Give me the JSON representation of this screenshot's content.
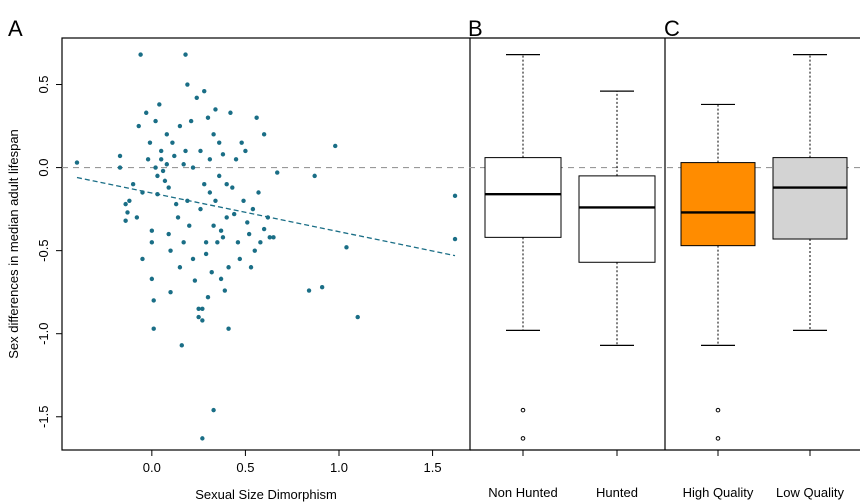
{
  "chart_data": [
    {
      "type": "scatter",
      "panel_label": "A",
      "xlabel": "Sexual Size Dimorphism",
      "ylabel": "Sex differences in median adult lifespan",
      "xlim": [
        -0.48,
        1.7
      ],
      "ylim": [
        -1.7,
        0.78
      ],
      "xticks": [
        0.0,
        0.5,
        1.0,
        1.5
      ],
      "xtick_labels": [
        "0.0",
        "0.5",
        "1.0",
        "1.5"
      ],
      "yticks": [
        0.5,
        0.0,
        -0.5,
        -1.0,
        -1.5
      ],
      "ytick_labels": [
        "0.5",
        "0.0",
        "-0.5",
        "-1.0",
        "-1.5"
      ],
      "point_color": "#1a6e86",
      "reference_line": {
        "y": 0.0,
        "color": "#999999",
        "style": "dashed"
      },
      "trend_line": {
        "x": [
          -0.4,
          1.62
        ],
        "y": [
          -0.06,
          -0.53
        ],
        "color": "#1a6e86",
        "style": "dashed"
      },
      "points": [
        {
          "x": -0.4,
          "y": 0.03
        },
        {
          "x": -0.17,
          "y": 0.07
        },
        {
          "x": -0.17,
          "y": 0.0
        },
        {
          "x": -0.14,
          "y": -0.22
        },
        {
          "x": -0.13,
          "y": -0.27
        },
        {
          "x": -0.14,
          "y": -0.32
        },
        {
          "x": -0.12,
          "y": -0.2
        },
        {
          "x": -0.1,
          "y": -0.1
        },
        {
          "x": -0.08,
          "y": -0.3
        },
        {
          "x": -0.07,
          "y": 0.25
        },
        {
          "x": -0.06,
          "y": 0.68
        },
        {
          "x": -0.05,
          "y": -0.15
        },
        {
          "x": -0.05,
          "y": -0.55
        },
        {
          "x": -0.03,
          "y": 0.33
        },
        {
          "x": -0.02,
          "y": 0.05
        },
        {
          "x": -0.01,
          "y": 0.15
        },
        {
          "x": 0.0,
          "y": -0.38
        },
        {
          "x": 0.0,
          "y": -0.45
        },
        {
          "x": 0.0,
          "y": -0.67
        },
        {
          "x": 0.01,
          "y": -0.8
        },
        {
          "x": 0.01,
          "y": -0.97
        },
        {
          "x": 0.02,
          "y": 0.28
        },
        {
          "x": 0.02,
          "y": 0.0
        },
        {
          "x": 0.03,
          "y": -0.05
        },
        {
          "x": 0.03,
          "y": -0.16
        },
        {
          "x": 0.04,
          "y": 0.38
        },
        {
          "x": 0.05,
          "y": 0.1
        },
        {
          "x": 0.05,
          "y": 0.05
        },
        {
          "x": 0.06,
          "y": -0.02
        },
        {
          "x": 0.07,
          "y": -0.08
        },
        {
          "x": 0.08,
          "y": 0.2
        },
        {
          "x": 0.08,
          "y": 0.02
        },
        {
          "x": 0.09,
          "y": -0.12
        },
        {
          "x": 0.09,
          "y": -0.4
        },
        {
          "x": 0.1,
          "y": -0.5
        },
        {
          "x": 0.1,
          "y": -0.75
        },
        {
          "x": 0.11,
          "y": 0.15
        },
        {
          "x": 0.12,
          "y": 0.07
        },
        {
          "x": 0.13,
          "y": -0.22
        },
        {
          "x": 0.14,
          "y": -0.3
        },
        {
          "x": 0.15,
          "y": 0.25
        },
        {
          "x": 0.15,
          "y": -0.6
        },
        {
          "x": 0.16,
          "y": -1.07
        },
        {
          "x": 0.17,
          "y": 0.02
        },
        {
          "x": 0.17,
          "y": -0.45
        },
        {
          "x": 0.18,
          "y": 0.68
        },
        {
          "x": 0.18,
          "y": 0.1
        },
        {
          "x": 0.19,
          "y": 0.5
        },
        {
          "x": 0.19,
          "y": -0.2
        },
        {
          "x": 0.2,
          "y": -0.35
        },
        {
          "x": 0.21,
          "y": 0.28
        },
        {
          "x": 0.22,
          "y": 0.0
        },
        {
          "x": 0.22,
          "y": -0.55
        },
        {
          "x": 0.23,
          "y": -0.68
        },
        {
          "x": 0.24,
          "y": 0.42
        },
        {
          "x": 0.25,
          "y": -0.85
        },
        {
          "x": 0.25,
          "y": -0.9
        },
        {
          "x": 0.26,
          "y": 0.1
        },
        {
          "x": 0.26,
          "y": -0.25
        },
        {
          "x": 0.27,
          "y": -0.85
        },
        {
          "x": 0.27,
          "y": -0.92
        },
        {
          "x": 0.28,
          "y": 0.46
        },
        {
          "x": 0.28,
          "y": -0.1
        },
        {
          "x": 0.29,
          "y": -0.45
        },
        {
          "x": 0.29,
          "y": -0.52
        },
        {
          "x": 0.3,
          "y": 0.3
        },
        {
          "x": 0.3,
          "y": -0.78
        },
        {
          "x": 0.31,
          "y": 0.05
        },
        {
          "x": 0.31,
          "y": -0.15
        },
        {
          "x": 0.32,
          "y": -0.63
        },
        {
          "x": 0.33,
          "y": 0.2
        },
        {
          "x": 0.33,
          "y": -0.35
        },
        {
          "x": 0.34,
          "y": 0.35
        },
        {
          "x": 0.34,
          "y": -0.2
        },
        {
          "x": 0.35,
          "y": -0.45
        },
        {
          "x": 0.36,
          "y": 0.15
        },
        {
          "x": 0.36,
          "y": -0.05
        },
        {
          "x": 0.37,
          "y": -0.38
        },
        {
          "x": 0.37,
          "y": -0.67
        },
        {
          "x": 0.38,
          "y": 0.08
        },
        {
          "x": 0.38,
          "y": -0.42
        },
        {
          "x": 0.39,
          "y": -0.74
        },
        {
          "x": 0.4,
          "y": -0.1
        },
        {
          "x": 0.4,
          "y": -0.3
        },
        {
          "x": 0.41,
          "y": -0.6
        },
        {
          "x": 0.41,
          "y": -0.97
        },
        {
          "x": 0.42,
          "y": 0.33
        },
        {
          "x": 0.43,
          "y": -0.12
        },
        {
          "x": 0.44,
          "y": -0.28
        },
        {
          "x": 0.45,
          "y": 0.05
        },
        {
          "x": 0.46,
          "y": -0.45
        },
        {
          "x": 0.47,
          "y": -0.55
        },
        {
          "x": 0.48,
          "y": 0.15
        },
        {
          "x": 0.49,
          "y": -0.2
        },
        {
          "x": 0.5,
          "y": 0.1
        },
        {
          "x": 0.51,
          "y": -0.33
        },
        {
          "x": 0.52,
          "y": -0.4
        },
        {
          "x": 0.53,
          "y": -0.6
        },
        {
          "x": 0.54,
          "y": -0.25
        },
        {
          "x": 0.55,
          "y": -0.5
        },
        {
          "x": 0.56,
          "y": 0.3
        },
        {
          "x": 0.57,
          "y": -0.15
        },
        {
          "x": 0.58,
          "y": -0.45
        },
        {
          "x": 0.6,
          "y": 0.2
        },
        {
          "x": 0.6,
          "y": -0.37
        },
        {
          "x": 0.62,
          "y": -0.3
        },
        {
          "x": 0.63,
          "y": -0.42
        },
        {
          "x": 0.65,
          "y": -0.42
        },
        {
          "x": 0.67,
          "y": -0.03
        },
        {
          "x": 0.84,
          "y": -0.74
        },
        {
          "x": 0.87,
          "y": -0.05
        },
        {
          "x": 0.91,
          "y": -0.72
        },
        {
          "x": 0.98,
          "y": 0.13
        },
        {
          "x": 1.04,
          "y": -0.48
        },
        {
          "x": 1.1,
          "y": -0.9
        },
        {
          "x": 1.62,
          "y": -0.17
        },
        {
          "x": 1.62,
          "y": -0.43
        },
        {
          "x": 0.27,
          "y": -1.63
        },
        {
          "x": 0.33,
          "y": -1.46
        }
      ]
    },
    {
      "type": "boxplot",
      "panel_label": "B",
      "categories": [
        "Non Hunted",
        "Hunted"
      ],
      "boxes": [
        {
          "whisker_low": -0.98,
          "q1": -0.42,
          "median": -0.16,
          "q3": 0.06,
          "whisker_high": 0.68,
          "outliers": [
            -1.46,
            -1.63
          ],
          "fill": "#ffffff"
        },
        {
          "whisker_low": -1.07,
          "q1": -0.57,
          "median": -0.24,
          "q3": -0.05,
          "whisker_high": 0.46,
          "outliers": [],
          "fill": "#ffffff"
        }
      ]
    },
    {
      "type": "boxplot",
      "panel_label": "C",
      "categories": [
        "High Quality",
        "Low Quality"
      ],
      "boxes": [
        {
          "whisker_low": -1.07,
          "q1": -0.47,
          "median": -0.27,
          "q3": 0.03,
          "whisker_high": 0.38,
          "outliers": [
            -1.46,
            -1.63
          ],
          "fill": "#ff8c00"
        },
        {
          "whisker_low": -0.98,
          "q1": -0.43,
          "median": -0.12,
          "q3": 0.06,
          "whisker_high": 0.68,
          "outliers": [],
          "fill": "#d3d3d3"
        }
      ]
    }
  ]
}
